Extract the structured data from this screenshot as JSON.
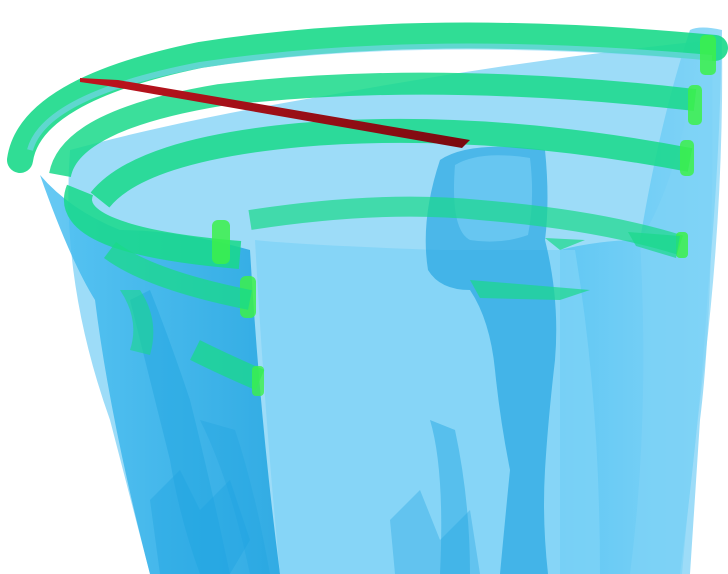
{
  "scene": {
    "subject": "translucent-vessel-render",
    "colors": {
      "background": "#ffffff",
      "vessel_light": "#7fd3f7",
      "vessel_mid": "#4cc0f2",
      "vessel_dark": "#1fa3e0",
      "vessel_edge": "#2b9fd9",
      "ring_green": "#19d98a",
      "ring_bright": "#3cf04a",
      "ring_dark": "#10b070",
      "needle": "#c0141e",
      "needle_tip": "#7a0a10"
    }
  }
}
